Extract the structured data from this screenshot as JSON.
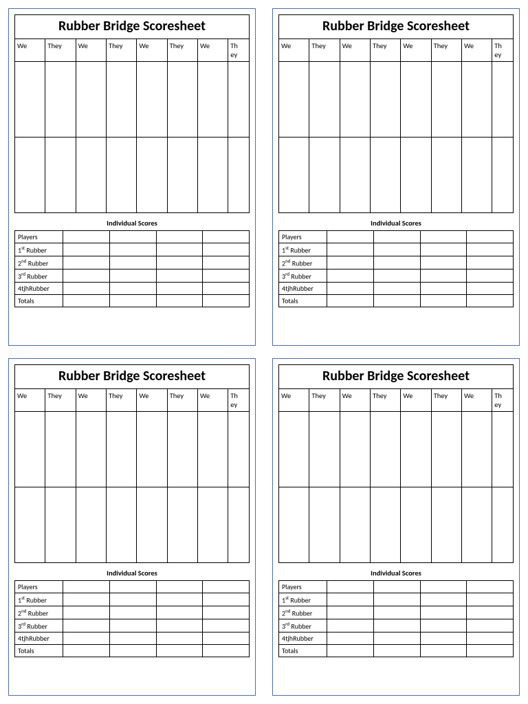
{
  "card": {
    "title": "Rubber Bridge Scoresheet",
    "columns": [
      "We",
      "They",
      "We",
      "They",
      "We",
      "They",
      "We",
      "They"
    ],
    "last_col_break": "Th\ney",
    "individual_scores_label": "Individual Scores",
    "rows": [
      {
        "label": "Players"
      },
      {
        "label": "1",
        "sup": "st",
        "suffix": " Rubber"
      },
      {
        "label": "2",
        "sup": "nd",
        "suffix": " Rubber"
      },
      {
        "label": "3",
        "sup": "rd",
        "suffix": " Rubber"
      },
      {
        "label": "4tjhRubber"
      },
      {
        "label": "Totals"
      }
    ],
    "border_color": "#4a6ea9"
  }
}
